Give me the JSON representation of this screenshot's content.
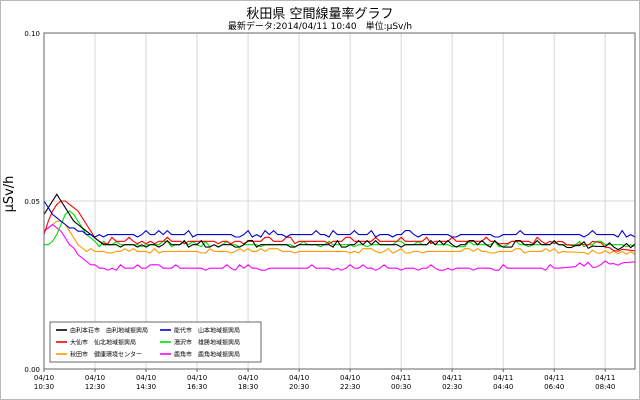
{
  "chart_data": {
    "type": "line",
    "title": "秋田県 空間線量率グラフ",
    "subtitle": "最新データ:2014/04/11 10:40　単位:μSv/h",
    "ylabel": "μSv/h",
    "ylim": [
      0,
      0.1
    ],
    "yticks": [
      "0.00",
      "0.05",
      "0.10"
    ],
    "ytick_values": [
      0,
      0.05,
      0.1
    ],
    "grid": true,
    "legend_position": "bottom-left",
    "x_count": 140,
    "x_ticks": [
      {
        "i": 0,
        "date": "04/10",
        "time": "10:30"
      },
      {
        "i": 12,
        "date": "04/10",
        "time": "12:30"
      },
      {
        "i": 24,
        "date": "04/10",
        "time": "14:30"
      },
      {
        "i": 36,
        "date": "04/10",
        "time": "16:30"
      },
      {
        "i": 48,
        "date": "04/10",
        "time": "18:30"
      },
      {
        "i": 60,
        "date": "04/10",
        "time": "20:30"
      },
      {
        "i": 72,
        "date": "04/10",
        "time": "22:30"
      },
      {
        "i": 84,
        "date": "04/11",
        "time": "00:30"
      },
      {
        "i": 96,
        "date": "04/11",
        "time": "02:30"
      },
      {
        "i": 108,
        "date": "04/11",
        "time": "04:40"
      },
      {
        "i": 120,
        "date": "04/11",
        "time": "06:40"
      },
      {
        "i": 132,
        "date": "04/11",
        "time": "08:40"
      }
    ],
    "series": [
      {
        "name": "由利本荘市　由利地域振興局",
        "color": "#000000",
        "start": [
          0.046,
          0.048,
          0.05,
          0.052,
          0.05,
          0.048,
          0.046,
          0.044,
          0.043,
          0.042,
          0.041,
          0.04,
          0.039,
          0.038
        ],
        "base": 0.037,
        "tail": 0.036,
        "noise": 0.0012
      },
      {
        "name": "能代市　山本地域振興局",
        "color": "#0000cc",
        "start": [
          0.05,
          0.048,
          0.046,
          0.045,
          0.044,
          0.043,
          0.042,
          0.042,
          0.041,
          0.041,
          0.04,
          0.04
        ],
        "base": 0.04,
        "tail": 0.04,
        "noise": 0.0012
      },
      {
        "name": "大仙市　仙北地域振興局",
        "color": "#ff0000",
        "start": [
          0.04,
          0.044,
          0.047,
          0.049,
          0.05,
          0.05,
          0.049,
          0.048,
          0.047,
          0.045,
          0.043,
          0.041,
          0.039,
          0.038
        ],
        "base": 0.038,
        "tail": 0.035,
        "noise": 0.0012
      },
      {
        "name": "湯沢市　雄勝地域振興局",
        "color": "#00dd00",
        "start": [
          0.037,
          0.037,
          0.038,
          0.04,
          0.043,
          0.046,
          0.047,
          0.046,
          0.044,
          0.042,
          0.04,
          0.039,
          0.038
        ],
        "base": 0.037,
        "tail": 0.037,
        "noise": 0.001
      },
      {
        "name": "秋田市　健康環境センター",
        "color": "#ff9900",
        "start": [
          0.041,
          0.042,
          0.043,
          0.044,
          0.044,
          0.043,
          0.041,
          0.039,
          0.037,
          0.036,
          0.035
        ],
        "base": 0.035,
        "tail": 0.034,
        "noise": 0.0008
      },
      {
        "name": "鹿角市　鹿角地域振興局",
        "color": "#ff00ff",
        "start": [
          0.041,
          0.042,
          0.043,
          0.042,
          0.041,
          0.039,
          0.037,
          0.036,
          0.034,
          0.033,
          0.032,
          0.031
        ],
        "base": 0.03,
        "tail": 0.032,
        "noise": 0.001
      }
    ]
  }
}
